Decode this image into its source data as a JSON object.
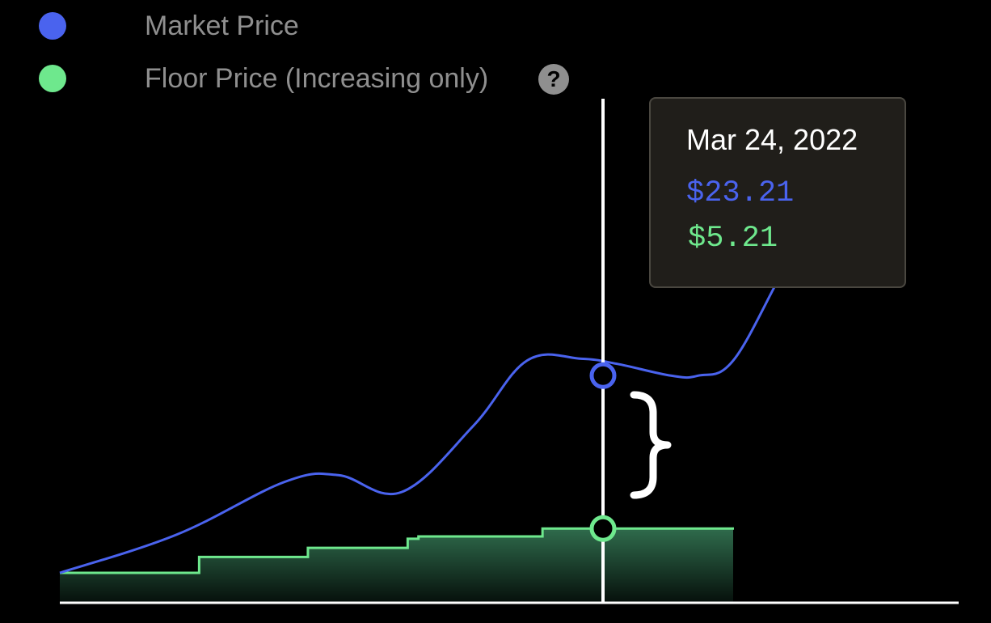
{
  "legend": {
    "market_label": "Market Price",
    "floor_label": "Floor Price (Increasing only)",
    "help_symbol": "?",
    "help_icon": "question-circle-icon"
  },
  "tooltip": {
    "date": "Mar 24, 2022",
    "market_value": "$23.21",
    "floor_value": "$5.21"
  },
  "colors": {
    "background": "#000000",
    "market": "#4a63ee",
    "floor": "#6ee88d",
    "floor_fill_top": "#2f6b4c",
    "axis": "#ffffff",
    "legend_text": "#8f8f8f",
    "tooltip_bg": "#201e1a"
  },
  "chart_data": {
    "type": "line",
    "grid": false,
    "legend_placement": "top-left",
    "series": [
      {
        "name": "Market Price",
        "x": [
          0,
          0.13,
          0.25,
          0.31,
          0.38,
          0.46,
          0.52,
          0.58,
          0.62,
          0.68,
          0.71,
          0.75,
          0.81,
          0.85
        ],
        "values": [
          0.0,
          4.5,
          10.7,
          11.5,
          9.5,
          17.3,
          25.0,
          25.2,
          24.6,
          23.21,
          23.21,
          25.1,
          36.5,
          42.0
        ]
      },
      {
        "name": "Floor Price (Increasing only)",
        "type": "step-area",
        "x": [
          0,
          0.155,
          0.276,
          0.387,
          0.399,
          0.537,
          0.608,
          0.75
        ],
        "values": [
          0.0,
          1.87,
          2.94,
          4.01,
          4.28,
          5.21,
          5.21,
          5.21
        ]
      }
    ],
    "highlight": {
      "x": 0.608,
      "date": "Mar 24, 2022",
      "market": 23.21,
      "floor": 5.21
    }
  }
}
